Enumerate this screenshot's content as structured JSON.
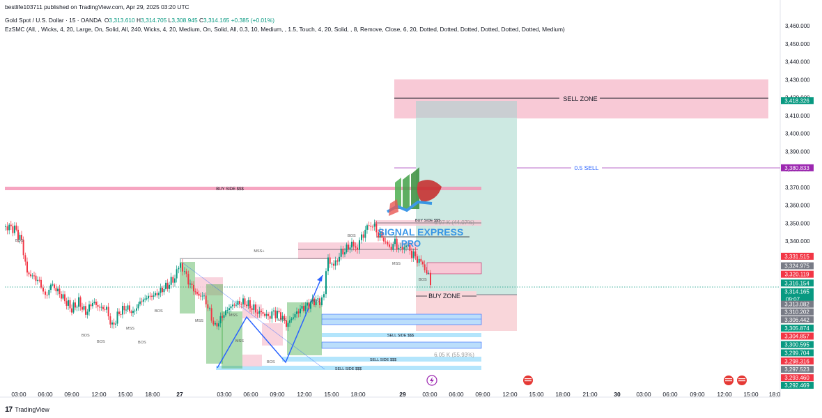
{
  "header": {
    "published": "bestlife103711 published on TradingView.com, Apr 29, 2025 03:20 UTC",
    "symbol": "Gold Spot / U.S. Dollar · 15 · OANDA",
    "open_label": "O",
    "open": "3,313.610",
    "high_label": "H",
    "high": "3,314.705",
    "low_label": "L",
    "low": "3,308.945",
    "close_label": "C",
    "close": "3,314.165",
    "change": "+0.385 (+0.01%)",
    "indicator": "EzSMC (All, , Wicks, 4, 20, Large, On, Solid, All, 240, Wicks, 4, 20, Medium, On, Solid, All, 0.3, 10, Medium, , 1.5, Touch, 4, 20, Solid, , 8, Remove, Close, 6, 20, Dotted, Dotted, Dotted, Dotted, Dotted, Dotted, Medium)"
  },
  "footer": {
    "logo": "17",
    "brand": "TradingView"
  },
  "colors": {
    "up": "#089981",
    "down": "#f23645",
    "sell_zone": "#f8c9d6",
    "position_profit": "#cde9e2",
    "position_loss": "#f9d6da",
    "accent_purple": "#9c27b0",
    "blue": "#2962ff"
  },
  "price_axis": {
    "min": 3290,
    "max": 3465,
    "ticks": [
      "3,460.000",
      "3,450.000",
      "3,440.000",
      "3,430.000",
      "3,420.000",
      "3,410.000",
      "3,400.000",
      "3,390.000",
      "3,380.000",
      "3,370.000",
      "3,360.000",
      "3,350.000",
      "3,340.000"
    ],
    "tick_values": [
      3460,
      3450,
      3440,
      3430,
      3420,
      3410,
      3400,
      3390,
      3380,
      3370,
      3360,
      3350,
      3340
    ],
    "badges": [
      {
        "text": "3,418.326",
        "value": 3418.326,
        "bg": "#089981",
        "fg": "#ffffff"
      },
      {
        "text": "3,380.833",
        "value": 3380.833,
        "bg": "#9c27b0",
        "fg": "#ffffff"
      },
      {
        "text": "3,331.515",
        "value": 3331.515,
        "bg": "#f23645",
        "fg": "#ffffff"
      },
      {
        "text": "3,324.975",
        "value": 3326.2,
        "bg": "#787b86",
        "fg": "#ffffff"
      },
      {
        "text": "3,320.119",
        "value": 3321.5,
        "bg": "#f23645",
        "fg": "#ffffff"
      },
      {
        "text": "3,316.154",
        "value": 3316.6,
        "bg": "#089981",
        "fg": "#ffffff"
      },
      {
        "text": "3,314.165",
        "value": 3311.8,
        "bg": "#089981",
        "fg": "#ffffff",
        "sub": "09:07"
      },
      {
        "text": "3,313.082",
        "value": 3304.8,
        "bg": "#787b86",
        "fg": "#ffffff"
      },
      {
        "text": "3,310.202",
        "value": 3300.5,
        "bg": "#787b86",
        "fg": "#ffffff"
      },
      {
        "text": "3,306.442",
        "value": 3296.2,
        "bg": "#787b86",
        "fg": "#ffffff"
      },
      {
        "text": "3,305.874",
        "value": 3291.5,
        "bg": "#089981",
        "fg": "#ffffff"
      },
      {
        "text": "3,304.857",
        "value": 3287.0,
        "bg": "#f23645",
        "fg": "#ffffff"
      },
      {
        "text": "3,300.595",
        "value": 3282.3,
        "bg": "#089981",
        "fg": "#ffffff"
      },
      {
        "text": "3,299.704",
        "value": 3277.7,
        "bg": "#089981",
        "fg": "#ffffff"
      },
      {
        "text": "3,298.316",
        "value": 3273.1,
        "bg": "#f23645",
        "fg": "#ffffff"
      },
      {
        "text": "3,297.523",
        "value": 3268.5,
        "bg": "#787b86",
        "fg": "#ffffff"
      },
      {
        "text": "3,293.460",
        "value": 3263.8,
        "bg": "#f23645",
        "fg": "#ffffff"
      },
      {
        "text": "3,292.469",
        "value": 3259.6,
        "bg": "#089981",
        "fg": "#ffffff"
      }
    ]
  },
  "time_axis": {
    "labels": [
      {
        "t": "03:00",
        "x": 27
      },
      {
        "t": "06:00",
        "x": 65
      },
      {
        "t": "09:00",
        "x": 103
      },
      {
        "t": "12:00",
        "x": 142
      },
      {
        "t": "15:00",
        "x": 180
      },
      {
        "t": "18:00",
        "x": 219
      },
      {
        "t": "27",
        "x": 258,
        "bold": true
      },
      {
        "t": "03:00",
        "x": 322
      },
      {
        "t": "06:00",
        "x": 360
      },
      {
        "t": "09:00",
        "x": 398
      },
      {
        "t": "12:00",
        "x": 437
      },
      {
        "t": "15:00",
        "x": 476
      },
      {
        "t": "18:00",
        "x": 514
      },
      {
        "t": "29",
        "x": 578,
        "bold": true
      },
      {
        "t": "03:00",
        "x": 617
      },
      {
        "t": "06:00",
        "x": 655
      },
      {
        "t": "09:00",
        "x": 693
      },
      {
        "t": "12:00",
        "x": 732
      },
      {
        "t": "15:00",
        "x": 770
      },
      {
        "t": "18:00",
        "x": 808
      },
      {
        "t": "21:00",
        "x": 847
      },
      {
        "t": "30",
        "x": 886,
        "bold": true
      },
      {
        "t": "03:00",
        "x": 924
      },
      {
        "t": "06:00",
        "x": 962
      },
      {
        "t": "09:00",
        "x": 1001
      },
      {
        "t": "12:00",
        "x": 1040
      },
      {
        "t": "15:00",
        "x": 1078
      },
      {
        "t": "18:0",
        "x": 1112
      }
    ]
  },
  "annotations": {
    "sell_zone": "SELL ZONE",
    "half_sell": "0.5 SELL",
    "buy_zone": "BUY ZONE",
    "buy_side_1": "BUY SIDE $$$",
    "buy_side_2": "BUY SIDE $$$",
    "sell_side_1": "SELL SIDE $$$",
    "sell_side_2": "SELL SIDE $$$",
    "sell_side_3": "SELL SIDE $$$",
    "target_pct": "6.97 K (44.07%)",
    "stop_pct": "6.05 K (55.93%)",
    "mss_plus": "MSS+",
    "logo_line1": "SIGNAL EXPRESS",
    "logo_line2": "PRO",
    "bos": [
      "BOS",
      "BOS",
      "BOS",
      "BOS",
      "BOS",
      "BOS",
      "BOS",
      "BOS",
      "BOS"
    ],
    "mss": [
      "MSS",
      "MSS",
      "MSS",
      "MSS",
      "MSS",
      "MSS"
    ]
  }
}
